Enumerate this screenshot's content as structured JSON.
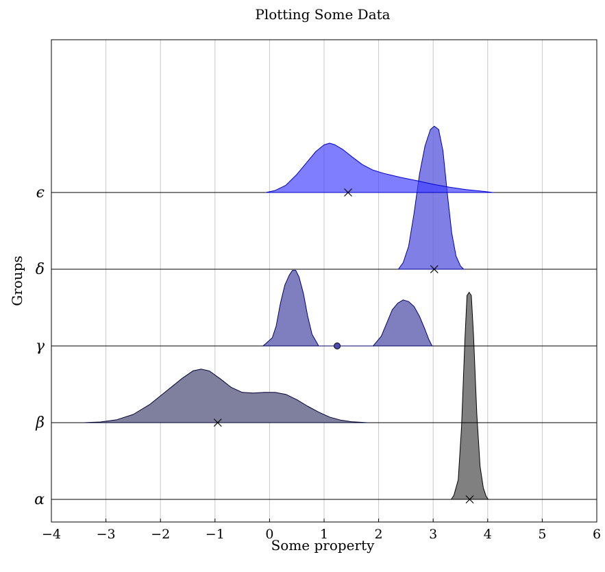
{
  "chart_data": {
    "type": "ridgeline",
    "title": "Plotting Some Data",
    "xlabel": "Some property",
    "ylabel": "Groups",
    "xlim": [
      -4,
      6
    ],
    "x_ticks": [
      "−4",
      "−3",
      "−2",
      "−1",
      "0",
      "1",
      "2",
      "3",
      "4",
      "5",
      "6"
    ],
    "x_tick_values": [
      -4,
      -3,
      -2,
      -1,
      0,
      1,
      2,
      3,
      4,
      5,
      6
    ],
    "grid": "vertical",
    "groups": [
      {
        "label": "α",
        "fill": "#808080",
        "fill_opacity": 1.0,
        "stroke": "#000000",
        "marker": {
          "x": 3.67,
          "symbol": "cross"
        },
        "curve": [
          [
            3.33,
            0
          ],
          [
            3.38,
            0.12
          ],
          [
            3.46,
            0.6
          ],
          [
            3.52,
            2.2
          ],
          [
            3.58,
            4.8
          ],
          [
            3.62,
            6.2
          ],
          [
            3.66,
            6.3
          ],
          [
            3.7,
            6.2
          ],
          [
            3.74,
            5.0
          ],
          [
            3.8,
            2.6
          ],
          [
            3.86,
            1.0
          ],
          [
            3.92,
            0.35
          ],
          [
            3.97,
            0.1
          ],
          [
            4.01,
            0
          ]
        ]
      },
      {
        "label": "β",
        "fill": "#7f7f9e",
        "fill_opacity": 1.0,
        "stroke": "#000033",
        "marker": {
          "x": -0.95,
          "symbol": "cross"
        },
        "curve": [
          [
            -3.42,
            0
          ],
          [
            -3.1,
            0.02
          ],
          [
            -2.8,
            0.09
          ],
          [
            -2.5,
            0.25
          ],
          [
            -2.2,
            0.55
          ],
          [
            -1.9,
            0.95
          ],
          [
            -1.6,
            1.35
          ],
          [
            -1.4,
            1.58
          ],
          [
            -1.25,
            1.63
          ],
          [
            -1.1,
            1.57
          ],
          [
            -0.9,
            1.33
          ],
          [
            -0.7,
            1.07
          ],
          [
            -0.5,
            0.92
          ],
          [
            -0.3,
            0.9
          ],
          [
            -0.1,
            0.92
          ],
          [
            0.1,
            0.92
          ],
          [
            0.3,
            0.86
          ],
          [
            0.5,
            0.7
          ],
          [
            0.7,
            0.5
          ],
          [
            0.9,
            0.32
          ],
          [
            1.1,
            0.17
          ],
          [
            1.3,
            0.08
          ],
          [
            1.5,
            0.03
          ],
          [
            1.8,
            0
          ]
        ]
      },
      {
        "label": "γ",
        "fill": "#7f7fbf",
        "fill_opacity": 1.0,
        "stroke": "#000066",
        "marker": {
          "x": 1.24,
          "symbol": "dot"
        },
        "curve": [
          [
            -0.12,
            0
          ],
          [
            -0.05,
            0.1
          ],
          [
            0.05,
            0.25
          ],
          [
            0.12,
            0.6
          ],
          [
            0.2,
            1.3
          ],
          [
            0.28,
            1.85
          ],
          [
            0.36,
            2.15
          ],
          [
            0.42,
            2.3
          ],
          [
            0.48,
            2.3
          ],
          [
            0.54,
            2.1
          ],
          [
            0.62,
            1.6
          ],
          [
            0.7,
            0.9
          ],
          [
            0.78,
            0.35
          ],
          [
            0.86,
            0.12
          ],
          [
            0.9,
            0
          ],
          [
            1.9,
            0
          ],
          [
            1.95,
            0.1
          ],
          [
            2.05,
            0.3
          ],
          [
            2.15,
            0.7
          ],
          [
            2.25,
            1.1
          ],
          [
            2.35,
            1.3
          ],
          [
            2.45,
            1.4
          ],
          [
            2.55,
            1.35
          ],
          [
            2.65,
            1.2
          ],
          [
            2.75,
            0.9
          ],
          [
            2.85,
            0.5
          ],
          [
            2.92,
            0.2
          ],
          [
            2.98,
            0
          ]
        ]
      },
      {
        "label": "δ",
        "fill": "#5f5fdf",
        "fill_opacity": 0.8,
        "stroke": "#000099",
        "marker": {
          "x": 3.02,
          "symbol": "cross"
        },
        "curve": [
          [
            2.36,
            0
          ],
          [
            2.45,
            0.2
          ],
          [
            2.55,
            0.7
          ],
          [
            2.65,
            1.7
          ],
          [
            2.75,
            2.9
          ],
          [
            2.85,
            3.75
          ],
          [
            2.95,
            4.25
          ],
          [
            3.02,
            4.35
          ],
          [
            3.1,
            4.25
          ],
          [
            3.18,
            3.6
          ],
          [
            3.26,
            2.3
          ],
          [
            3.34,
            1.1
          ],
          [
            3.42,
            0.4
          ],
          [
            3.5,
            0.1
          ],
          [
            3.56,
            0
          ]
        ]
      },
      {
        "label": "ϵ",
        "fill": "#3f3fff",
        "fill_opacity": 0.67,
        "stroke": "#0000cc",
        "marker": {
          "x": 1.44,
          "symbol": "cross"
        },
        "curve": [
          [
            -0.07,
            0
          ],
          [
            0.1,
            0.06
          ],
          [
            0.3,
            0.22
          ],
          [
            0.5,
            0.55
          ],
          [
            0.7,
            0.95
          ],
          [
            0.85,
            1.25
          ],
          [
            1.0,
            1.45
          ],
          [
            1.1,
            1.5
          ],
          [
            1.2,
            1.45
          ],
          [
            1.35,
            1.3
          ],
          [
            1.5,
            1.1
          ],
          [
            1.7,
            0.85
          ],
          [
            1.9,
            0.68
          ],
          [
            2.1,
            0.58
          ],
          [
            2.4,
            0.46
          ],
          [
            2.7,
            0.36
          ],
          [
            3.0,
            0.25
          ],
          [
            3.3,
            0.16
          ],
          [
            3.6,
            0.09
          ],
          [
            3.9,
            0.04
          ],
          [
            4.1,
            0
          ]
        ]
      }
    ]
  }
}
